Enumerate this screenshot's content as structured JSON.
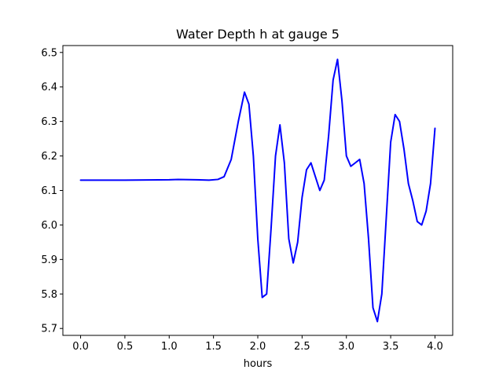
{
  "chart_data": {
    "type": "line",
    "title": "Water Depth h at gauge 5",
    "xlabel": "hours",
    "ylabel": "",
    "xlim": [
      -0.2,
      4.2
    ],
    "ylim": [
      5.68,
      6.52
    ],
    "xticks": [
      0.0,
      0.5,
      1.0,
      1.5,
      2.0,
      2.5,
      3.0,
      3.5,
      4.0
    ],
    "xtick_labels": [
      "0.0",
      "0.5",
      "1.0",
      "1.5",
      "2.0",
      "2.5",
      "3.0",
      "3.5",
      "4.0"
    ],
    "yticks": [
      5.7,
      5.8,
      5.9,
      6.0,
      6.1,
      6.2,
      6.3,
      6.4,
      6.5
    ],
    "ytick_labels": [
      "5.7",
      "5.8",
      "5.9",
      "6.0",
      "6.1",
      "6.2",
      "6.3",
      "6.4",
      "6.5"
    ],
    "grid": false,
    "series": [
      {
        "color": "#0000ff",
        "x": [
          0.0,
          0.5,
          1.0,
          1.1,
          1.3,
          1.45,
          1.55,
          1.62,
          1.7,
          1.78,
          1.85,
          1.9,
          1.95,
          2.0,
          2.05,
          2.1,
          2.15,
          2.2,
          2.25,
          2.3,
          2.35,
          2.4,
          2.45,
          2.5,
          2.55,
          2.6,
          2.65,
          2.7,
          2.75,
          2.8,
          2.85,
          2.9,
          2.95,
          3.0,
          3.05,
          3.1,
          3.15,
          3.2,
          3.25,
          3.3,
          3.35,
          3.4,
          3.45,
          3.5,
          3.55,
          3.6,
          3.65,
          3.7,
          3.75,
          3.8,
          3.85,
          3.9,
          3.95,
          4.0
        ],
        "y": [
          6.13,
          6.13,
          6.131,
          6.132,
          6.131,
          6.13,
          6.132,
          6.14,
          6.19,
          6.3,
          6.385,
          6.35,
          6.2,
          5.96,
          5.79,
          5.8,
          5.99,
          6.2,
          6.29,
          6.18,
          5.96,
          5.89,
          5.95,
          6.08,
          6.16,
          6.18,
          6.14,
          6.1,
          6.13,
          6.26,
          6.42,
          6.48,
          6.36,
          6.2,
          6.17,
          6.18,
          6.19,
          6.12,
          5.96,
          5.76,
          5.72,
          5.8,
          6.02,
          6.24,
          6.32,
          6.3,
          6.22,
          6.12,
          6.07,
          6.01,
          6.0,
          6.04,
          6.12,
          6.28
        ]
      }
    ]
  }
}
